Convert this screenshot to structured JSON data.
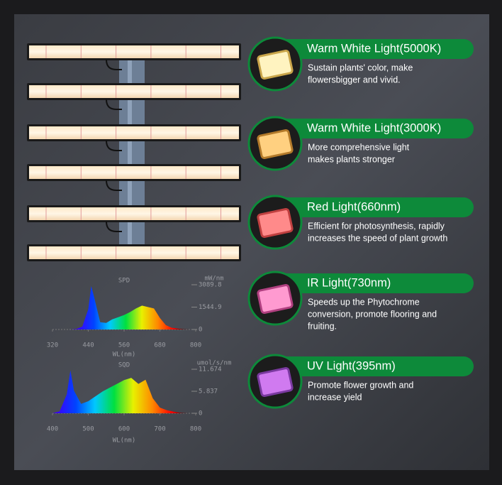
{
  "chart_data": [
    {
      "type": "area",
      "title": "SPD",
      "unit": "mW/nm",
      "xlabel": "WL(nm)",
      "x": [
        380,
        400,
        420,
        440,
        450,
        460,
        480,
        500,
        520,
        540,
        560,
        580,
        600,
        620,
        640,
        660,
        680,
        700,
        720,
        740,
        760,
        780
      ],
      "values": [
        0,
        30,
        200,
        1400,
        3000,
        2200,
        500,
        450,
        700,
        850,
        1000,
        1200,
        1450,
        1650,
        1550,
        1450,
        800,
        300,
        120,
        60,
        20,
        0
      ],
      "xlim": [
        320,
        800
      ],
      "xticks": [
        320,
        440,
        560,
        680,
        800
      ],
      "ylim": [
        0,
        3089.8
      ],
      "yticks": [
        0,
        1544.9,
        3089.8
      ]
    },
    {
      "type": "area",
      "title": "SQD",
      "unit": "umol/s/nm",
      "xlabel": "WL(nm)",
      "x": [
        400,
        420,
        440,
        450,
        460,
        480,
        500,
        520,
        540,
        560,
        580,
        600,
        620,
        640,
        660,
        680,
        700,
        720,
        740,
        760,
        780
      ],
      "values": [
        0,
        0.5,
        5,
        11.4,
        6,
        2.5,
        3.2,
        4.5,
        5.8,
        6.8,
        7.8,
        8.8,
        9.4,
        7.8,
        8.9,
        4,
        1.5,
        0.8,
        0.4,
        0.1,
        0
      ],
      "xlim": [
        400,
        800
      ],
      "xticks": [
        400,
        500,
        600,
        700,
        800
      ],
      "ylim": [
        0,
        11.674
      ],
      "yticks": [
        0,
        5.837,
        11.674
      ]
    }
  ],
  "features": [
    {
      "title": "Warm White Light(5000K)",
      "lines": [
        "Sustain plants' color, make",
        "flowersbigger and vivid."
      ]
    },
    {
      "title": "Warm White Light(3000K)",
      "lines": [
        "More comprehensive light",
        "makes plants stronger"
      ]
    },
    {
      "title": "Red Light(660nm)",
      "lines": [
        "Efficient for photosynthesis, rapidly",
        "increases the speed of plant growth"
      ]
    },
    {
      "title": "IR Light(730nm)",
      "lines": [
        "Speeds up the Phytochrome",
        "conversion, promote flooring and",
        "fruiting."
      ]
    },
    {
      "title": "UV Light(395nm)",
      "lines": [
        "Promote flower growth and",
        "increase yield"
      ]
    }
  ]
}
